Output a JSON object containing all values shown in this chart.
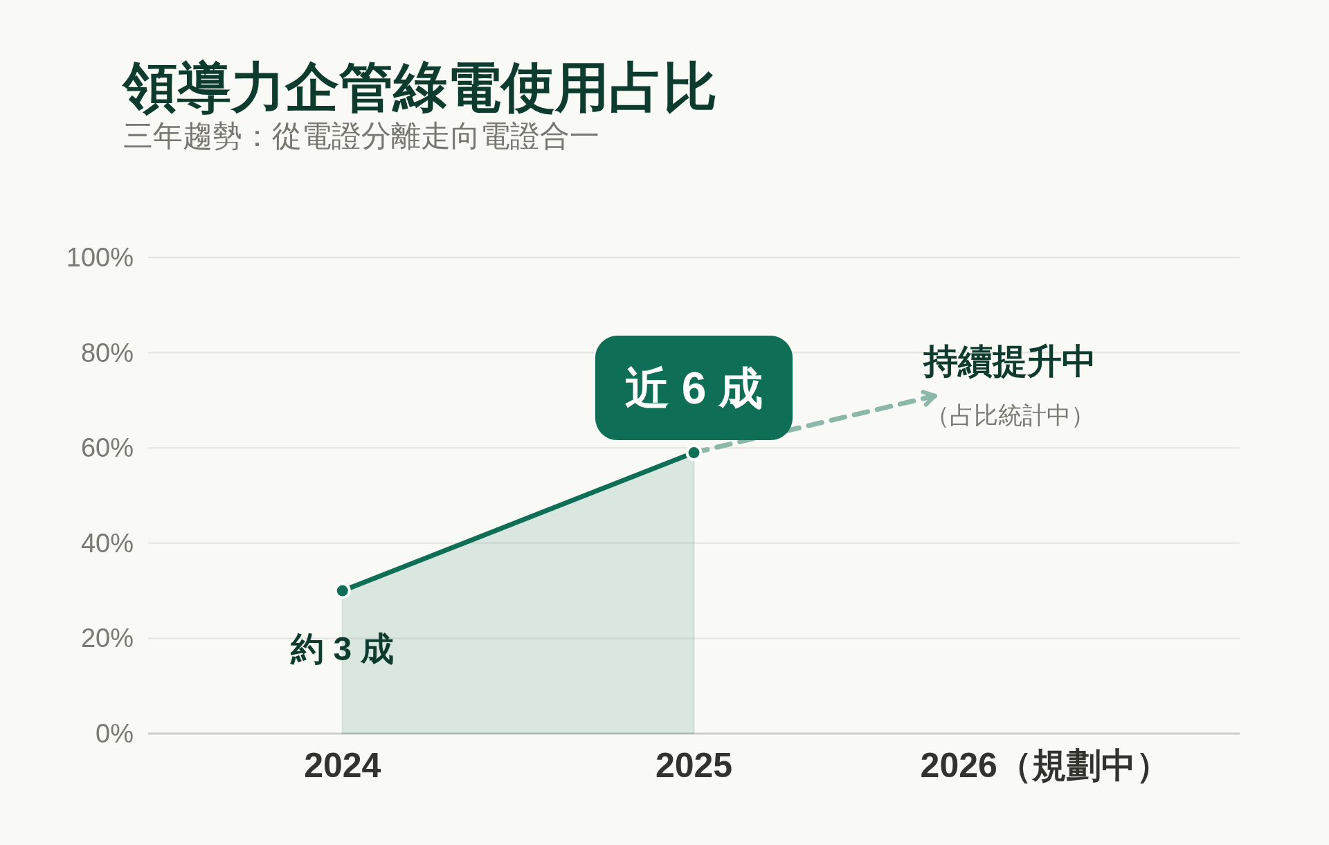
{
  "chart_data": {
    "type": "area",
    "title": "領導力企管綠電使用占比",
    "subtitle": "三年趨勢：從電證分離走向電證合一",
    "categories": [
      "2024",
      "2025",
      "2026（規劃中）"
    ],
    "values": [
      30,
      59,
      null
    ],
    "color": "#0f6f56",
    "value_labels": [
      "約 3 成",
      "近 6 成",
      null
    ],
    "ylim": [
      0,
      100
    ],
    "yticks": [
      {
        "value": 0,
        "label": "0%"
      },
      {
        "value": 20,
        "label": "20%"
      },
      {
        "value": 40,
        "label": "40%"
      },
      {
        "value": 60,
        "label": "60%"
      },
      {
        "value": 80,
        "label": "80%"
      },
      {
        "value": 100,
        "label": "100%"
      }
    ],
    "grid": "y",
    "marker": "circle",
    "line_style": "solid",
    "annotations": [
      "持續提升中",
      "（占比統計中）"
    ]
  }
}
